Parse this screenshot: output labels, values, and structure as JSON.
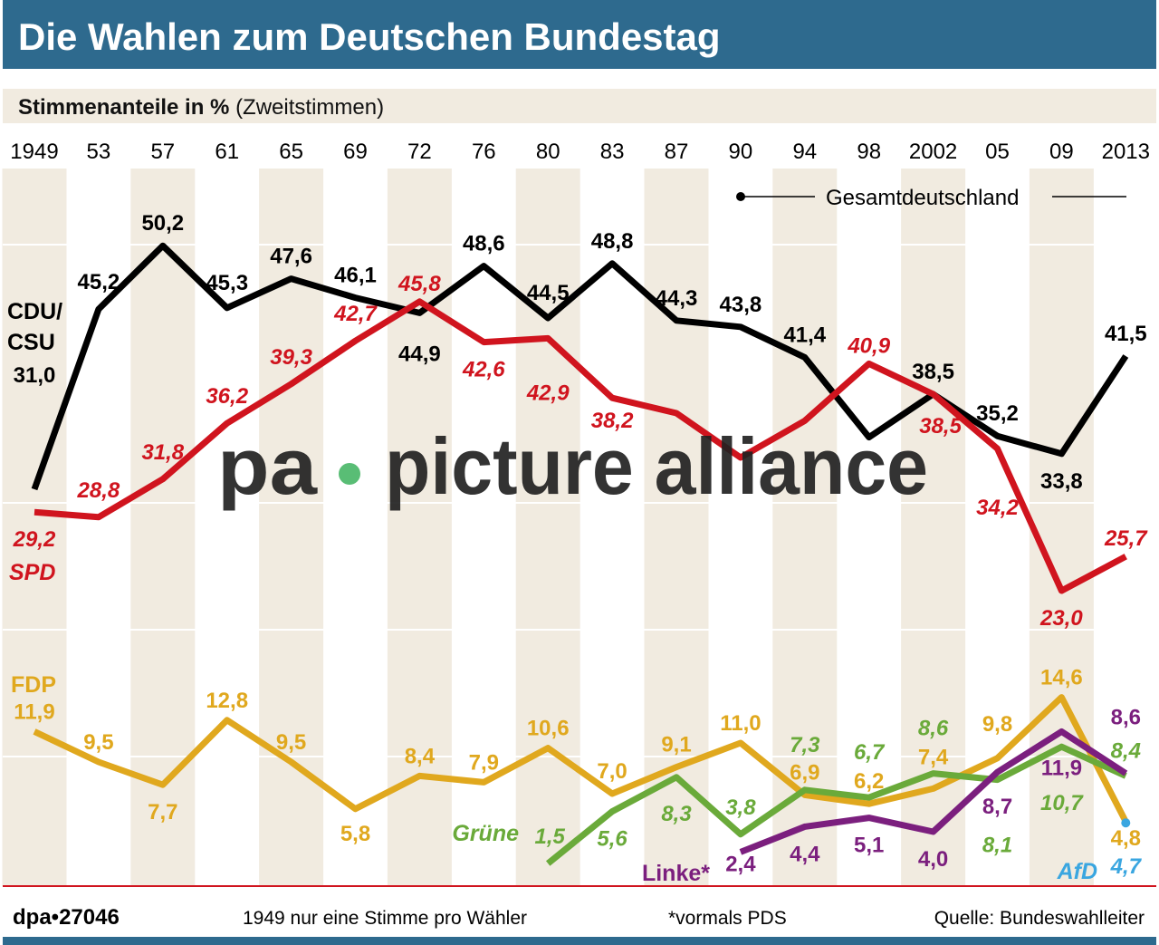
{
  "header": {
    "title": "Die Wahlen zum Deutschen Bundestag",
    "subtitle_bold": "Stimmenanteile in %",
    "subtitle_rest": "(Zweitstimmen)"
  },
  "legend": {
    "label": "Gesamtdeutschland"
  },
  "footer": {
    "id": "dpa•27046",
    "note1": "1949 nur eine Stimme pro Wähler",
    "note2": "*vormals PDS",
    "source": "Quelle: Bundeswahlleiter"
  },
  "watermark": {
    "text_left": "pa",
    "text_right": "picture alliance"
  },
  "colors": {
    "title_bar": "#2e6a8e",
    "band": "#f1ebe0",
    "cdu": "#000000",
    "spd": "#d0141e",
    "fdp": "#e0a81e",
    "gruene": "#6aaa3a",
    "linke": "#7b1f7e",
    "afd": "#3aa6e0"
  },
  "chart_data": {
    "type": "line",
    "title": "Die Wahlen zum Deutschen Bundestag",
    "ylabel": "Stimmenanteile in % (Zweitstimmen)",
    "categories": [
      "1949",
      "53",
      "57",
      "61",
      "65",
      "69",
      "72",
      "76",
      "80",
      "83",
      "87",
      "90",
      "94",
      "98",
      "2002",
      "05",
      "09",
      "2013"
    ],
    "ylim": [
      0,
      52
    ],
    "grid": false,
    "legend": "top-right",
    "series": [
      {
        "name": "CDU/ CSU",
        "key": "cdu",
        "values": [
          31.0,
          45.2,
          50.2,
          45.3,
          47.6,
          46.1,
          44.9,
          48.6,
          44.5,
          48.8,
          44.3,
          43.8,
          41.4,
          35.1,
          38.5,
          35.2,
          33.8,
          41.5
        ]
      },
      {
        "name": "SPD",
        "key": "spd",
        "values": [
          29.2,
          28.8,
          31.8,
          36.2,
          39.3,
          42.7,
          45.8,
          42.6,
          42.9,
          38.2,
          37.0,
          33.5,
          36.4,
          40.9,
          38.5,
          34.2,
          23.0,
          25.7
        ]
      },
      {
        "name": "FDP",
        "key": "fdp",
        "values": [
          11.9,
          9.5,
          7.7,
          12.8,
          9.5,
          5.8,
          8.4,
          7.9,
          10.6,
          7.0,
          9.1,
          11.0,
          6.9,
          6.2,
          7.4,
          9.8,
          14.6,
          4.8
        ]
      },
      {
        "name": "Grüne",
        "key": "gruene",
        "values": [
          null,
          null,
          null,
          null,
          null,
          null,
          null,
          null,
          1.5,
          5.6,
          8.3,
          3.8,
          7.3,
          6.7,
          8.6,
          8.1,
          10.7,
          8.4
        ]
      },
      {
        "name": "Linke*",
        "key": "linke",
        "values": [
          null,
          null,
          null,
          null,
          null,
          null,
          null,
          null,
          null,
          null,
          null,
          2.4,
          4.4,
          5.1,
          4.0,
          8.7,
          11.9,
          8.6
        ]
      },
      {
        "name": "AfD",
        "key": "afd",
        "values": [
          null,
          null,
          null,
          null,
          null,
          null,
          null,
          null,
          null,
          null,
          null,
          null,
          null,
          null,
          null,
          null,
          null,
          4.7
        ]
      }
    ]
  }
}
